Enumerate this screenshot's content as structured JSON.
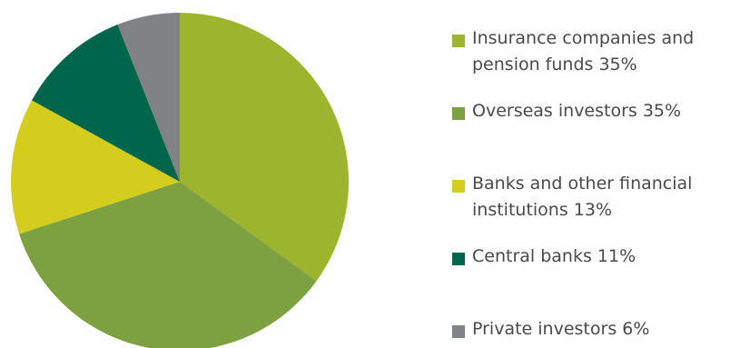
{
  "chart_data": {
    "type": "pie",
    "slices": [
      {
        "label": "Insurance companies and pension funds 35%",
        "value": 35,
        "color": "#9db42e"
      },
      {
        "label": "Overseas investors 35%",
        "value": 35,
        "color": "#7da040"
      },
      {
        "label": "Banks and other financial institutions 13%",
        "value": 13,
        "color": "#d4cd1e"
      },
      {
        "label": "Central banks 11%",
        "value": 11,
        "color": "#00664b"
      },
      {
        "label": "Private investors 6%",
        "value": 6,
        "color": "#808285"
      }
    ],
    "legend_position": "right"
  }
}
